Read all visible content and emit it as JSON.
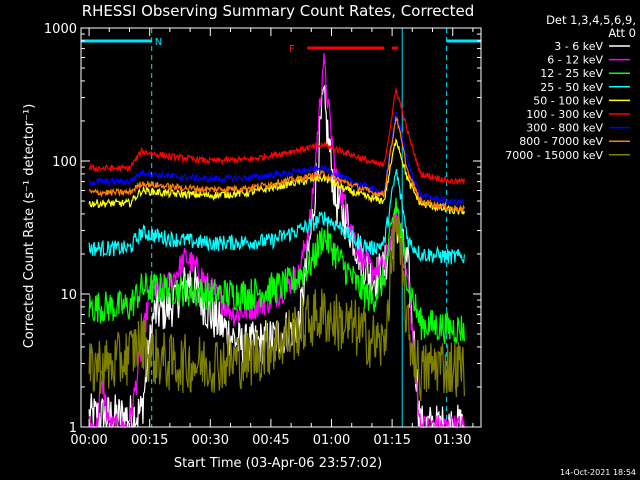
{
  "chart_data": {
    "type": "line",
    "title": "RHESSI Observing Summary Count Rates, Corrected",
    "xlabel": "Start Time (03-Apr-06 23:57:02)",
    "ylabel": "Corrected Count Rate (s⁻¹ detector⁻¹)",
    "y_scale": "log",
    "ylim": [
      1,
      1000
    ],
    "xlim": [
      -2,
      97
    ],
    "x_unit": "minutes since start",
    "x_ticks": [
      {
        "pos": 0,
        "label": "00:00"
      },
      {
        "pos": 15,
        "label": "00:15"
      },
      {
        "pos": 30,
        "label": "00:30"
      },
      {
        "pos": 45,
        "label": "00:45"
      },
      {
        "pos": 60,
        "label": "01:00"
      },
      {
        "pos": 75,
        "label": "01:15"
      },
      {
        "pos": 90,
        "label": "01:30"
      }
    ],
    "y_ticks": [
      {
        "pos": 1,
        "label": "1"
      },
      {
        "pos": 10,
        "label": "10"
      },
      {
        "pos": 100,
        "label": "100"
      },
      {
        "pos": 1000,
        "label": "1000"
      }
    ],
    "legend": {
      "placement": "right",
      "header_line1": "Det 1,3,4,5,6,9,",
      "header_line2": "Att 0"
    },
    "series": [
      {
        "name": "3 - 6 keV",
        "color": "#ffffff",
        "x": [
          0,
          10,
          13,
          14.5,
          16,
          20,
          25,
          30,
          38,
          45,
          52,
          55,
          58,
          61,
          64,
          67,
          70,
          73,
          76,
          79,
          82,
          90,
          93
        ],
        "y": [
          1.2,
          1.2,
          1.3,
          3,
          7,
          8,
          13,
          7,
          4,
          4.5,
          6,
          30,
          300,
          50,
          35,
          20,
          13,
          15,
          35,
          15,
          1,
          1,
          1
        ]
      },
      {
        "name": "6 - 12 keV",
        "color": "#ff00ff",
        "x": [
          0,
          2,
          3,
          5,
          10,
          13,
          15,
          20,
          24,
          27,
          30,
          36,
          45,
          52,
          55,
          58,
          61,
          64,
          67,
          70,
          73,
          76,
          79,
          82,
          90,
          93
        ],
        "y": [
          1,
          1,
          2.5,
          1,
          1,
          4,
          10,
          12,
          19,
          15,
          11,
          7,
          9,
          14,
          40,
          580,
          80,
          40,
          20,
          15,
          16,
          38,
          12,
          1,
          1,
          1
        ]
      },
      {
        "name": "12 - 25 keV",
        "color": "#00ff00",
        "x": [
          0,
          10,
          13,
          20,
          30,
          40,
          50,
          55,
          58,
          62,
          66,
          70,
          73,
          76,
          79,
          82,
          90,
          93
        ],
        "y": [
          8,
          8,
          11,
          11,
          10,
          10,
          12,
          17,
          28,
          18,
          12,
          9,
          13,
          50,
          12,
          6,
          5.5,
          5.5
        ]
      },
      {
        "name": "25 - 50 keV",
        "color": "#00ffff",
        "x": [
          0,
          10,
          13,
          20,
          30,
          45,
          55,
          58,
          62,
          66,
          70,
          73,
          76,
          79,
          82,
          90,
          93
        ],
        "y": [
          22,
          22,
          29,
          26,
          24,
          25,
          33,
          38,
          32,
          25,
          22,
          24,
          85,
          25,
          20,
          19,
          19
        ]
      },
      {
        "name": "50 - 100 keV",
        "color": "#ffff00",
        "x": [
          0,
          10,
          13,
          20,
          30,
          40,
          50,
          58,
          64,
          70,
          73,
          76,
          79,
          82,
          90,
          93
        ],
        "y": [
          48,
          48,
          60,
          57,
          55,
          58,
          68,
          75,
          60,
          52,
          50,
          150,
          70,
          48,
          42,
          42
        ]
      },
      {
        "name": "100 - 300 keV",
        "color": "#ff0000",
        "x": [
          0,
          10,
          13,
          20,
          30,
          40,
          50,
          58,
          64,
          70,
          73,
          76,
          79,
          82,
          90,
          93
        ],
        "y": [
          88,
          88,
          118,
          108,
          100,
          103,
          118,
          132,
          115,
          97,
          92,
          350,
          160,
          80,
          70,
          70
        ]
      },
      {
        "name": "300 - 800 keV",
        "color": "#0000ff",
        "x": [
          0,
          10,
          13,
          20,
          30,
          40,
          50,
          58,
          64,
          70,
          73,
          76,
          79,
          82,
          90,
          93
        ],
        "y": [
          70,
          70,
          82,
          77,
          73,
          75,
          82,
          88,
          72,
          62,
          58,
          240,
          95,
          55,
          49,
          49
        ]
      },
      {
        "name": "800 - 7000 keV",
        "color": "#ff8000",
        "x": [
          0,
          10,
          13,
          20,
          30,
          40,
          50,
          58,
          64,
          70,
          73,
          76,
          79,
          82,
          90,
          93
        ],
        "y": [
          58,
          58,
          68,
          64,
          61,
          63,
          72,
          80,
          68,
          58,
          56,
          220,
          80,
          50,
          44,
          44
        ]
      },
      {
        "name": "7000 - 15000 keV",
        "color": "#808000",
        "x": [
          0,
          2,
          5,
          10,
          13,
          15,
          20,
          30,
          40,
          50,
          55,
          58,
          62,
          66,
          70,
          73,
          76,
          79,
          82,
          86,
          90,
          93
        ],
        "y": [
          2.5,
          3,
          2.8,
          3.5,
          4.5,
          3.5,
          3,
          3,
          3.3,
          5,
          6.5,
          7,
          6,
          5.5,
          4.5,
          4,
          38,
          5,
          2.5,
          3,
          2.8,
          2.8
        ]
      }
    ],
    "annotations": {
      "n_label": "N",
      "f_label": "F",
      "timestamp": "14-Oct-2021 18:54",
      "night_bars": [
        [
          -2,
          15.5
        ],
        [
          88.5,
          97
        ]
      ],
      "flare_bars": [
        [
          54,
          73
        ],
        [
          75,
          76.5
        ]
      ],
      "night_dashed_x": [
        15.5,
        88.5
      ],
      "cyan_solid_x": [
        -2,
        77.5
      ]
    }
  }
}
